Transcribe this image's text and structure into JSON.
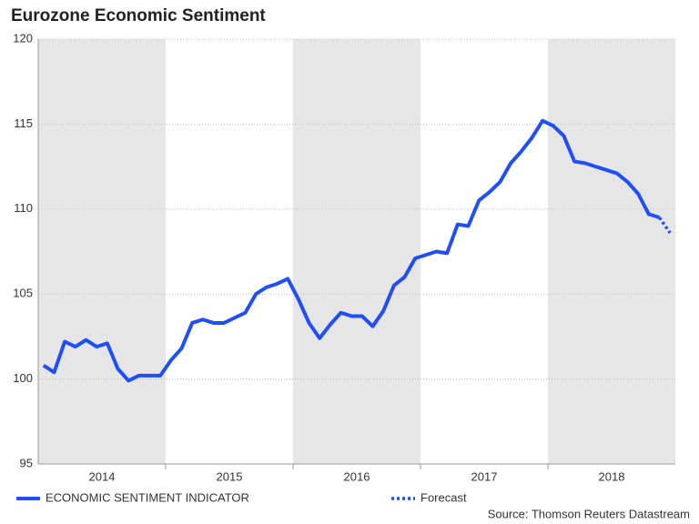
{
  "chart_data": {
    "type": "line",
    "title": "Eurozone Economic Sentiment",
    "source": "Source: Thomson Reuters Datastream",
    "x_groups": [
      "2014",
      "2015",
      "2016",
      "2017",
      "2018"
    ],
    "categories": [
      null,
      null,
      null,
      null,
      null,
      null,
      null,
      null,
      null,
      null,
      null,
      null,
      null,
      null,
      null,
      null,
      null,
      null,
      null,
      null,
      null,
      null,
      null,
      null,
      null,
      null,
      null,
      null,
      null,
      null,
      null,
      null,
      null,
      null,
      null,
      null,
      null,
      null,
      null,
      null,
      null,
      null,
      null,
      null,
      null,
      null,
      null,
      null,
      null,
      null,
      null,
      null,
      null,
      null,
      null,
      null,
      null,
      null,
      null,
      null
    ],
    "series": [
      {
        "name": "ECONOMIC SENTIMENT INDICATOR",
        "color": "#1f4ff5",
        "dashed": false,
        "values": [
          100.8,
          100.4,
          102.2,
          101.9,
          102.3,
          101.9,
          102.1,
          100.6,
          99.9,
          100.2,
          100.2,
          100.2,
          101.1,
          101.8,
          103.3,
          103.5,
          103.3,
          103.3,
          103.6,
          103.9,
          105.0,
          105.4,
          105.6,
          105.9,
          104.7,
          103.3,
          102.4,
          103.2,
          103.9,
          103.7,
          103.7,
          103.1,
          104.0,
          105.5,
          106.0,
          107.1,
          107.3,
          107.5,
          107.4,
          109.1,
          109.0,
          110.5,
          111.0,
          111.6,
          112.7,
          113.4,
          114.2,
          115.2,
          114.9,
          114.3,
          112.8,
          112.7,
          112.5,
          112.3,
          112.1,
          111.6,
          110.9,
          109.7,
          109.5,
          null
        ]
      },
      {
        "name": "Forecast",
        "color": "#1f4ff5",
        "dashed": true,
        "values": [
          null,
          null,
          null,
          null,
          null,
          null,
          null,
          null,
          null,
          null,
          null,
          null,
          null,
          null,
          null,
          null,
          null,
          null,
          null,
          null,
          null,
          null,
          null,
          null,
          null,
          null,
          null,
          null,
          null,
          null,
          null,
          null,
          null,
          null,
          null,
          null,
          null,
          null,
          null,
          null,
          null,
          null,
          null,
          null,
          null,
          null,
          null,
          null,
          null,
          null,
          null,
          null,
          null,
          null,
          null,
          null,
          null,
          null,
          109.5,
          108.6
        ]
      }
    ],
    "ylim": [
      95,
      120
    ],
    "yticks": [
      95,
      100,
      105,
      110,
      115,
      120
    ],
    "grid": true
  }
}
